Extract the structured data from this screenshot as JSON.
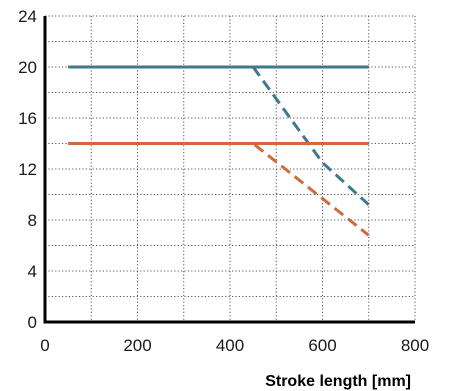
{
  "chart_data": {
    "type": "line",
    "title": "",
    "xlabel": "Stroke length [mm]",
    "ylabel": "",
    "xlim": [
      0,
      800
    ],
    "ylim": [
      0,
      24
    ],
    "x_ticks": [
      0,
      200,
      400,
      600,
      800
    ],
    "y_ticks": [
      0,
      4,
      8,
      12,
      16,
      20,
      24
    ],
    "grid": "dotted",
    "series": [
      {
        "color": "#3f7a8c",
        "style": "solid",
        "points": [
          [
            50,
            20
          ],
          [
            700,
            20
          ]
        ]
      },
      {
        "color": "#3f7a8c",
        "style": "dashed",
        "points": [
          [
            450,
            20
          ],
          [
            600,
            12.5
          ],
          [
            700,
            9.2
          ]
        ]
      },
      {
        "color": "#cf6a3d",
        "style": "solid",
        "points": [
          [
            50,
            14
          ],
          [
            700,
            14
          ]
        ]
      },
      {
        "color": "#cf6a3d",
        "style": "dashed",
        "points": [
          [
            50,
            14
          ],
          [
            450,
            14
          ],
          [
            700,
            6.8
          ]
        ]
      }
    ]
  }
}
